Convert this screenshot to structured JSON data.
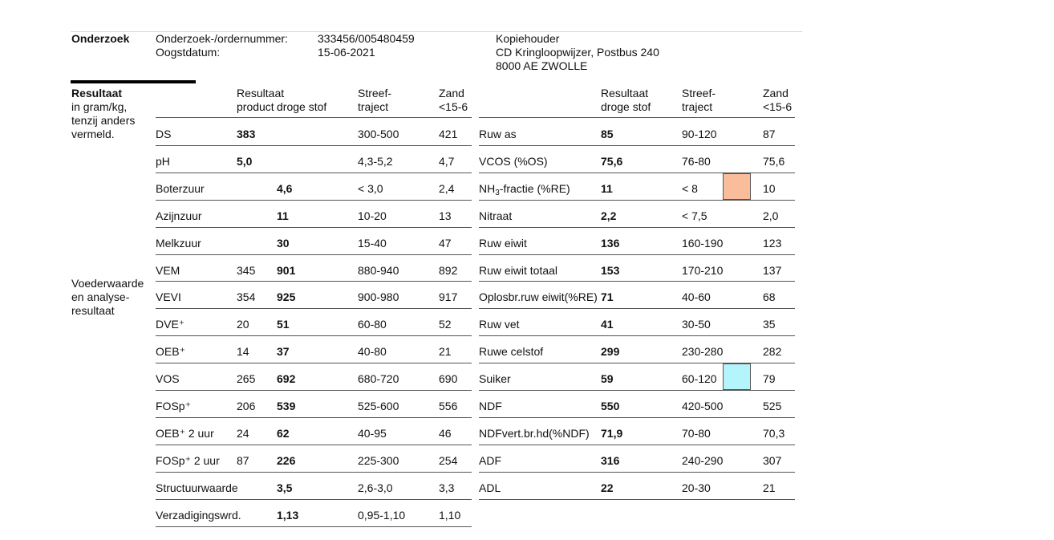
{
  "header": {
    "section_label": "Onderzoek",
    "order_label": "Onderzoek-/ordernummer:",
    "order_value": "333456/005480459",
    "harvest_label": "Oogstdatum:",
    "harvest_value": "15-06-2021",
    "copy_label": "Kopiehouder",
    "copy_line1": "CD Kringloopwijzer, Postbus 240",
    "copy_line2": "8000 AE  ZWOLLE"
  },
  "side": {
    "result_title": "Resultaat",
    "result_sub": [
      "in gram/kg,",
      "tenzij anders",
      "vermeld."
    ],
    "feed_label": [
      "Voederwaarde",
      "en analyse-",
      "resultaat"
    ]
  },
  "left_headers": {
    "result_line1": "Resultaat",
    "product": "product",
    "droge_stof": "droge stof",
    "streef_line1": "Streef-",
    "streef_line2": "traject",
    "zand_line1": "Zand",
    "zand_line2": "<15-6"
  },
  "right_headers": {
    "result_line1": "Resultaat",
    "result_line2": "droge stof",
    "streef_line1": "Streef-",
    "streef_line2": "traject",
    "zand_line1": "Zand",
    "zand_line2": "<15-6"
  },
  "left_rows": [
    {
      "name": "DS",
      "product": "383",
      "product_bold": true,
      "ds": "",
      "range": "300-500",
      "zand": "421"
    },
    {
      "name": "pH",
      "product": "5,0",
      "product_bold": true,
      "ds": "",
      "range": "4,3-5,2",
      "zand": "4,7"
    },
    {
      "name": "Boterzuur",
      "product": "",
      "ds": "4,6",
      "range": "< 3,0",
      "zand": "2,4"
    },
    {
      "name": "Azijnzuur",
      "product": "",
      "ds": "11",
      "range": "10-20",
      "zand": "13"
    },
    {
      "name": "Melkzuur",
      "product": "",
      "ds": "30",
      "range": "15-40",
      "zand": "47"
    },
    {
      "name": "VEM",
      "product": "345",
      "ds": "901",
      "range": "880-940",
      "zand": "892"
    },
    {
      "name": "VEVI",
      "product": "354",
      "ds": "925",
      "range": "900-980",
      "zand": "917"
    },
    {
      "name": "DVE⁺",
      "product": "20",
      "ds": "51",
      "range": "60-80",
      "zand": "52"
    },
    {
      "name": "OEB⁺",
      "product": "14",
      "ds": "37",
      "range": "40-80",
      "zand": "21"
    },
    {
      "name": "VOS",
      "product": "265",
      "ds": "692",
      "range": "680-720",
      "zand": "690"
    },
    {
      "name": "FOSp⁺",
      "product": "206",
      "ds": "539",
      "range": "525-600",
      "zand": "556"
    },
    {
      "name": "OEB⁺ 2 uur",
      "product": "24",
      "ds": "62",
      "range": "40-95",
      "zand": "46"
    },
    {
      "name": "FOSp⁺ 2 uur",
      "product": "87",
      "ds": "226",
      "range": "225-300",
      "zand": "254"
    },
    {
      "name": "Structuurwaarde",
      "product": "",
      "ds": "3,5",
      "range": "2,6-3,0",
      "zand": "3,3"
    },
    {
      "name": "Verzadigingswrd.",
      "product": "",
      "ds": "1,13",
      "range": "0,95-1,10",
      "zand": "1,10"
    }
  ],
  "right_rows": [
    {
      "name": "Ruw as",
      "ds": "85",
      "range": "90-120",
      "zand": "87"
    },
    {
      "name": "VCOS (%OS)",
      "ds": "75,6",
      "range": "76-80",
      "zand": "75,6"
    },
    {
      "name_pre": "NH",
      "name_sub": "3",
      "name_post": "-fractie (%RE)",
      "ds": "11",
      "range": "< 8",
      "zand": "10",
      "flag": "#f9bd9b"
    },
    {
      "name": "Nitraat",
      "ds": "2,2",
      "range": "< 7,5",
      "zand": "2,0"
    },
    {
      "name": "Ruw eiwit",
      "ds": "136",
      "range": "160-190",
      "zand": "123"
    },
    {
      "name": "Ruw eiwit totaal",
      "ds": "153",
      "range": "170-210",
      "zand": "137"
    },
    {
      "name": "Oplosbr.ruw eiwit(%RE)",
      "ds": "71",
      "range": "40-60",
      "zand": "68"
    },
    {
      "name": "Ruw vet",
      "ds": "41",
      "range": "30-50",
      "zand": "35"
    },
    {
      "name": "Ruwe celstof",
      "ds": "299",
      "range": "230-280",
      "zand": "282"
    },
    {
      "name": "Suiker",
      "ds": "59",
      "range": "60-120",
      "zand": "79",
      "flag": "#b3f5fa"
    },
    {
      "name": "NDF",
      "ds": "550",
      "range": "420-500",
      "zand": "525"
    },
    {
      "name": "NDFvert.br.hd(%NDF)",
      "ds": "71,9",
      "range": "70-80",
      "zand": "70,3"
    },
    {
      "name": "ADF",
      "ds": "316",
      "range": "240-290",
      "zand": "307"
    },
    {
      "name": "ADL",
      "ds": "22",
      "range": "20-30",
      "zand": "21"
    }
  ]
}
